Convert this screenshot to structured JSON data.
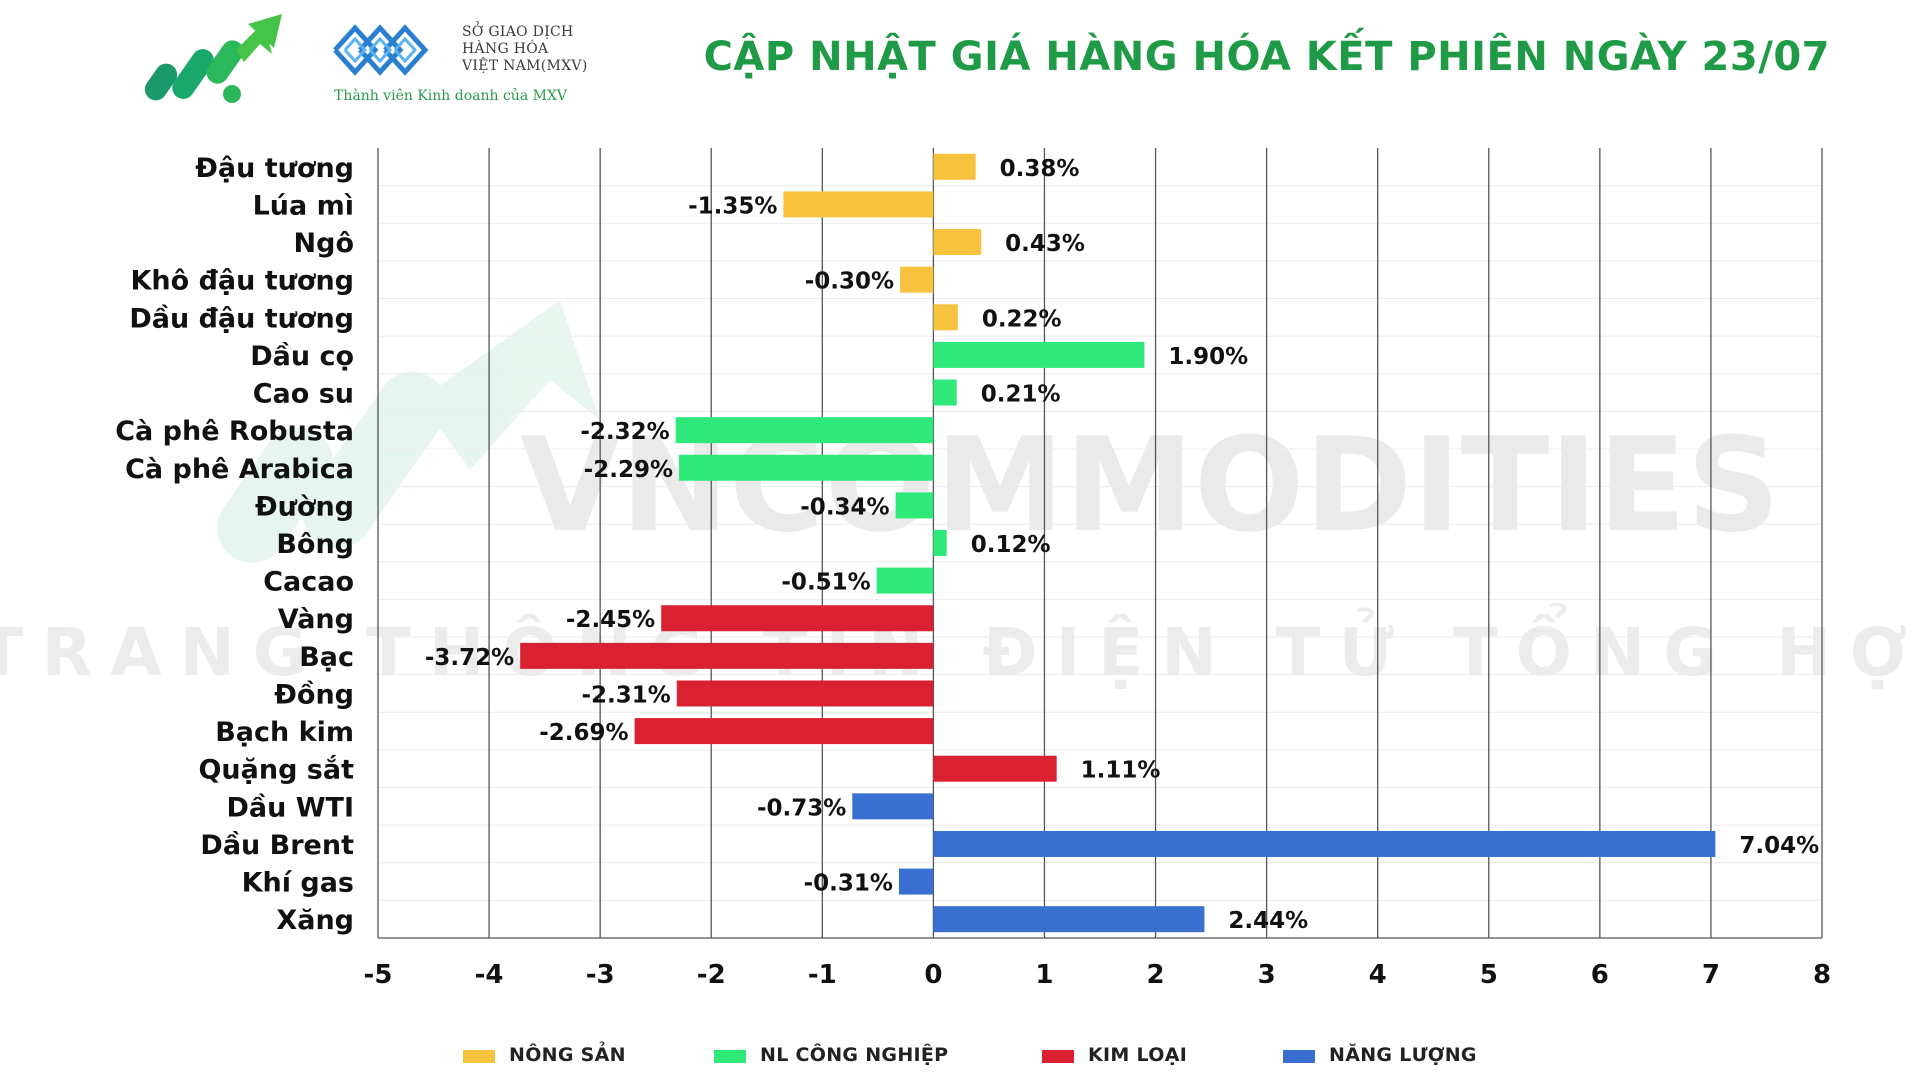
{
  "header": {
    "title": "CẬP NHẬT GIÁ HÀNG HÓA KẾT PHIÊN NGÀY 23/07",
    "mxv_line1": "SỞ GIAO DỊCH",
    "mxv_line2": "HÀNG HÓA",
    "mxv_line3": "VIỆT NAM(MXV)",
    "mxv_tagline": "Thành viên Kinh doanh của MXV"
  },
  "watermark": {
    "line1": "VNCOMMODITIES",
    "line2": "TRANG THÔNG TIN ĐIỆN TỬ TỔNG HỢP"
  },
  "colors": {
    "nong_san": "#f7c23e",
    "nl_cong_nghiep": "#2ee87a",
    "kim_loai": "#d92131",
    "nang_luong": "#3a6fd2",
    "title": "#1f9a46"
  },
  "legend": [
    {
      "label": "NÔNG SẢN",
      "color": "#f7c23e"
    },
    {
      "label": "NL CÔNG NGHIỆP",
      "color": "#2ee87a"
    },
    {
      "label": "KIM LOẠI",
      "color": "#d92131"
    },
    {
      "label": "NĂNG LƯỢNG",
      "color": "#3a6fd2"
    }
  ],
  "chart_data": {
    "type": "bar",
    "orientation": "horizontal",
    "xlim": [
      -5,
      8
    ],
    "xticks": [
      -5,
      -4,
      -3,
      -2,
      -1,
      0,
      1,
      2,
      3,
      4,
      5,
      6,
      7,
      8
    ],
    "grid": true,
    "legend_position": "bottom",
    "categories": [
      "Đậu tương",
      "Lúa mì",
      "Ngô",
      "Khô đậu tương",
      "Dầu đậu tương",
      "Dầu cọ",
      "Cao su",
      "Cà phê Robusta",
      "Cà phê Arabica",
      "Đường",
      "Bông",
      "Cacao",
      "Vàng",
      "Bạc",
      "Đồng",
      "Bạch kim",
      "Quặng sắt",
      "Dầu WTI",
      "Dầu Brent",
      "Khí gas",
      "Xăng"
    ],
    "values": [
      0.38,
      -1.35,
      0.43,
      -0.3,
      0.22,
      1.9,
      0.21,
      -2.32,
      -2.29,
      -0.34,
      0.12,
      -0.51,
      -2.45,
      -3.72,
      -2.31,
      -2.69,
      1.11,
      -0.73,
      7.04,
      -0.31,
      2.44
    ],
    "labels": [
      "0.38%",
      "-1.35%",
      "0.43%",
      "-0.30%",
      "0.22%",
      "1.90%",
      "0.21%",
      "-2.32%",
      "-2.29%",
      "-0.34%",
      "0.12%",
      "-0.51%",
      "-2.45%",
      "-3.72%",
      "-2.31%",
      "-2.69%",
      "1.11%",
      "-0.73%",
      "7.04%",
      "-0.31%",
      "2.44%"
    ],
    "groups": [
      "NÔNG SẢN",
      "NÔNG SẢN",
      "NÔNG SẢN",
      "NÔNG SẢN",
      "NÔNG SẢN",
      "NL CÔNG NGHIỆP",
      "NL CÔNG NGHIỆP",
      "NL CÔNG NGHIỆP",
      "NL CÔNG NGHIỆP",
      "NL CÔNG NGHIỆP",
      "NL CÔNG NGHIỆP",
      "NL CÔNG NGHIỆP",
      "KIM LOẠI",
      "KIM LOẠI",
      "KIM LOẠI",
      "KIM LOẠI",
      "KIM LOẠI",
      "NĂNG LƯỢNG",
      "NĂNG LƯỢNG",
      "NĂNG LƯỢNG",
      "NĂNG LƯỢNG"
    ]
  }
}
